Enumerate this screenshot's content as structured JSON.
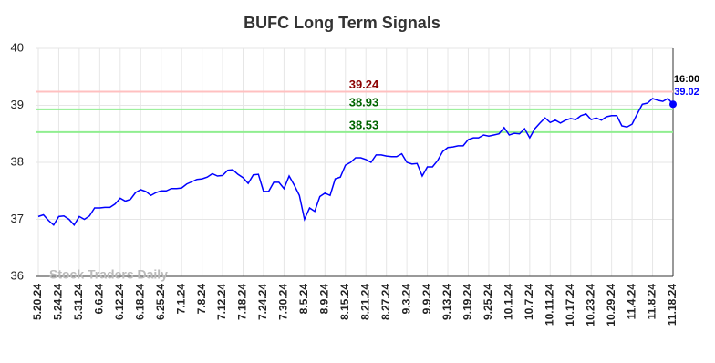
{
  "chart_data": {
    "type": "line",
    "title": "BUFC Long Term Signals",
    "watermark": "Stock Traders Daily",
    "categories": [
      "5.20.24",
      null,
      null,
      null,
      "5.24.24",
      null,
      null,
      null,
      "5.31.24",
      null,
      null,
      null,
      "6.6.24",
      null,
      null,
      null,
      "6.12.24",
      null,
      null,
      null,
      "6.18.24",
      null,
      null,
      null,
      "6.25.24",
      null,
      null,
      null,
      "7.1.24",
      null,
      null,
      null,
      "7.8.24",
      null,
      null,
      null,
      "7.12.24",
      null,
      null,
      null,
      "7.18.24",
      null,
      null,
      null,
      "7.24.24",
      null,
      null,
      null,
      "7.30.24",
      null,
      null,
      null,
      "8.5.24",
      null,
      null,
      null,
      "8.9.24",
      null,
      null,
      null,
      "8.15.24",
      null,
      null,
      null,
      "8.21.24",
      null,
      null,
      null,
      "8.27.24",
      null,
      null,
      null,
      "9.3.24",
      null,
      null,
      null,
      "9.9.24",
      null,
      null,
      null,
      "9.13.24",
      null,
      null,
      null,
      "9.19.24",
      null,
      null,
      null,
      "9.25.24",
      null,
      null,
      null,
      "10.1.24",
      null,
      null,
      null,
      "10.7.24",
      null,
      null,
      null,
      "10.11.24",
      null,
      null,
      null,
      "10.17.24",
      null,
      null,
      null,
      "10.23.24",
      null,
      null,
      null,
      "10.29.24",
      null,
      null,
      null,
      "11.4.24",
      null,
      null,
      null,
      "11.8.24",
      null,
      null,
      null,
      "11.18.24"
    ],
    "series": [
      {
        "color": "#0000ff",
        "values": [
          37.05,
          37.08,
          36.98,
          36.9,
          37.05,
          37.06,
          37.0,
          36.9,
          37.05,
          37.0,
          37.06,
          37.2,
          37.2,
          37.21,
          37.21,
          37.27,
          37.37,
          37.32,
          37.35,
          37.47,
          37.52,
          37.49,
          37.42,
          37.47,
          37.5,
          37.5,
          37.54,
          37.54,
          37.55,
          37.62,
          37.66,
          37.7,
          37.71,
          37.74,
          37.8,
          37.76,
          37.77,
          37.86,
          37.87,
          37.79,
          37.73,
          37.63,
          37.78,
          37.79,
          37.49,
          37.49,
          37.65,
          37.65,
          37.54,
          37.76,
          37.6,
          37.42,
          37.0,
          37.2,
          37.14,
          37.4,
          37.46,
          37.42,
          37.71,
          37.74,
          37.95,
          38.0,
          38.08,
          38.08,
          38.05,
          38.0,
          38.13,
          38.13,
          38.11,
          38.1,
          38.1,
          38.15,
          38.0,
          37.97,
          37.98,
          37.76,
          37.92,
          37.92,
          38.03,
          38.19,
          38.26,
          38.27,
          38.29,
          38.29,
          38.4,
          38.43,
          38.43,
          38.48,
          38.46,
          38.48,
          38.5,
          38.61,
          38.48,
          38.51,
          38.5,
          38.59,
          38.43,
          38.59,
          38.69,
          38.78,
          38.7,
          38.74,
          38.69,
          38.74,
          38.77,
          38.75,
          38.82,
          38.85,
          38.75,
          38.78,
          38.74,
          38.8,
          38.82,
          38.82,
          38.64,
          38.62,
          38.67,
          38.85,
          39.02,
          39.04,
          39.12,
          39.09,
          39.07,
          39.12,
          39.02
        ]
      }
    ],
    "last_point_label": "16:00",
    "levels": [
      {
        "value": 39.24,
        "color": "#ffc0c0",
        "label_color": "#8b0000"
      },
      {
        "value": 38.93,
        "color": "#90ee90",
        "label_color": "#006400"
      },
      {
        "value": 38.53,
        "color": "#90ee90",
        "label_color": "#006400"
      }
    ],
    "ylim": [
      36,
      40
    ],
    "yticks": [
      36,
      37,
      38,
      39,
      40
    ],
    "grid": true
  }
}
